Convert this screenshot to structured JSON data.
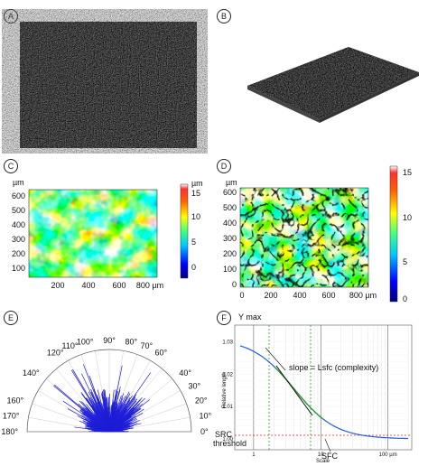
{
  "panels": {
    "A": {
      "label": "A"
    },
    "B": {
      "label": "B"
    },
    "C": {
      "label": "C",
      "unit": "µm",
      "y_ticks": [
        "600",
        "500",
        "400",
        "300",
        "200",
        "100"
      ],
      "x_ticks": [
        "200",
        "400",
        "600",
        "800 µm"
      ],
      "colorbar_ticks": [
        "15",
        "10",
        "5",
        "0"
      ]
    },
    "D": {
      "label": "D",
      "unit": "µm",
      "y_ticks": [
        "600",
        "500",
        "400",
        "300",
        "200",
        "100",
        "0"
      ],
      "x_ticks": [
        "0",
        "200",
        "400",
        "600",
        "800 µm"
      ],
      "colorbar_ticks": [
        "15",
        "10",
        "5",
        "0"
      ]
    },
    "E": {
      "label": "E",
      "angles": [
        "180°",
        "170°",
        "160°",
        "140°",
        "120°",
        "110°",
        "100°",
        "90°",
        "80°",
        "70°",
        "60°",
        "40°",
        "30°",
        "20°",
        "10°",
        "0°"
      ]
    },
    "F": {
      "label": "F",
      "title": "Y max",
      "ylabel": "Relative length",
      "xlabel": "Scale",
      "y_ticks": [
        "1.03",
        "1.02",
        "1.01",
        "1.00"
      ],
      "x_ticks": [
        "1",
        "10",
        "100 µm"
      ],
      "slope_text": "slope = Lsfc (complexity)",
      "src_text": "SRC",
      "threshold_text": "threshold",
      "sfc_text": "SFC"
    }
  },
  "colors": {
    "threshold": "#d62728",
    "green": "#2ca02c",
    "curve": "#1f5fd6",
    "rose": "#1f1fd6"
  }
}
